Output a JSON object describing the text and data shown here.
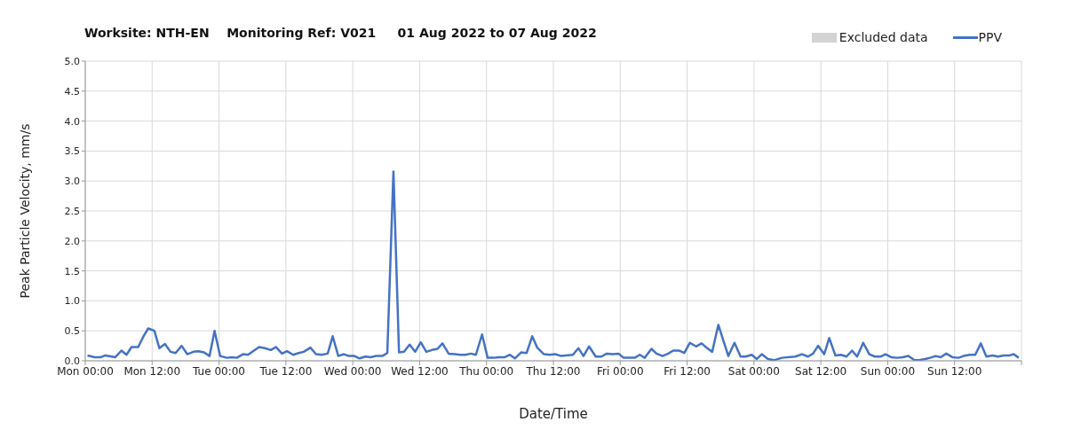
{
  "chart_data": {
    "type": "line",
    "title": "Worksite: NTH-EN    Monitoring Ref: V021     01 Aug 2022 to 07 Aug 2022",
    "xlabel": "Date/Time",
    "ylabel": "Peak Particle Velocity, mm/s",
    "xlim": [
      "2022-08-01T00:00",
      "2022-08-08T00:00"
    ],
    "xticks": [
      {
        "value": "2022-08-01T00:00",
        "label": "Mon 00:00"
      },
      {
        "value": "2022-08-01T12:00",
        "label": "Mon 12:00"
      },
      {
        "value": "2022-08-02T00:00",
        "label": "Tue 00:00"
      },
      {
        "value": "2022-08-02T12:00",
        "label": "Tue 12:00"
      },
      {
        "value": "2022-08-03T00:00",
        "label": "Wed 00:00"
      },
      {
        "value": "2022-08-03T12:00",
        "label": "Wed 12:00"
      },
      {
        "value": "2022-08-04T00:00",
        "label": "Thu 00:00"
      },
      {
        "value": "2022-08-04T12:00",
        "label": "Thu 12:00"
      },
      {
        "value": "2022-08-05T00:00",
        "label": "Fri 00:00"
      },
      {
        "value": "2022-08-05T12:00",
        "label": "Fri 12:00"
      },
      {
        "value": "2022-08-06T00:00",
        "label": "Sat 00:00"
      },
      {
        "value": "2022-08-06T12:00",
        "label": "Sat 12:00"
      },
      {
        "value": "2022-08-07T00:00",
        "label": "Sun 00:00"
      },
      {
        "value": "2022-08-07T12:00",
        "label": "Sun 12:00"
      },
      {
        "value": "2022-08-08T00:00",
        "label": null
      }
    ],
    "ylim": [
      0,
      5
    ],
    "yticks": [
      {
        "value": 0,
        "label": "0.0"
      },
      {
        "value": 0.5,
        "label": "0.5"
      },
      {
        "value": 1,
        "label": "1.0"
      },
      {
        "value": 1.5,
        "label": "1.5"
      },
      {
        "value": 2,
        "label": "2.0"
      },
      {
        "value": 2.5,
        "label": "2.5"
      },
      {
        "value": 3,
        "label": "3.0"
      },
      {
        "value": 3.5,
        "label": "3.5"
      },
      {
        "value": 4,
        "label": "4.0"
      },
      {
        "value": 4.5,
        "label": "4.5"
      },
      {
        "value": 5,
        "label": "5.0"
      }
    ],
    "grid": true,
    "legend": "top right",
    "marker": "none",
    "line_style": "solid",
    "series": [
      {
        "name": "Excluded data",
        "type": "area",
        "color": "#d3d3d3"
      },
      {
        "name": "PPV",
        "type": "line",
        "color": "#4472c4",
        "x": [
          "2022-08-01T00:24",
          "2022-08-01T01:42",
          "2022-08-01T02:48",
          "2022-08-01T03:36",
          "2022-08-01T05:24",
          "2022-08-01T06:30",
          "2022-08-01T07:24",
          "2022-08-01T08:18",
          "2022-08-01T09:30",
          "2022-08-01T10:24",
          "2022-08-01T11:18",
          "2022-08-01T12:24",
          "2022-08-01T13:18",
          "2022-08-01T14:18",
          "2022-08-01T15:18",
          "2022-08-01T16:12",
          "2022-08-01T17:18",
          "2022-08-01T18:18",
          "2022-08-01T19:24",
          "2022-08-01T20:18",
          "2022-08-01T21:18",
          "2022-08-01T22:18",
          "2022-08-01T23:12",
          "2022-08-02T00:12",
          "2022-08-02T01:24",
          "2022-08-02T02:18",
          "2022-08-02T03:12",
          "2022-08-02T04:18",
          "2022-08-02T05:12",
          "2022-08-02T06:06",
          "2022-08-02T07:12",
          "2022-08-02T08:12",
          "2022-08-02T09:18",
          "2022-08-02T10:12",
          "2022-08-02T11:18",
          "2022-08-02T12:12",
          "2022-08-02T13:18",
          "2022-08-02T14:18",
          "2022-08-02T15:12",
          "2022-08-02T16:24",
          "2022-08-02T17:24",
          "2022-08-02T18:24",
          "2022-08-02T19:30",
          "2022-08-02T20:24",
          "2022-08-02T21:24",
          "2022-08-02T22:24",
          "2022-08-02T23:18",
          "2022-08-03T00:18",
          "2022-08-03T01:12",
          "2022-08-03T02:18",
          "2022-08-03T03:12",
          "2022-08-03T04:12",
          "2022-08-03T05:18",
          "2022-08-03T06:12",
          "2022-08-03T07:18",
          "2022-08-03T08:18",
          "2022-08-03T09:12",
          "2022-08-03T10:12",
          "2022-08-03T11:12",
          "2022-08-03T12:12",
          "2022-08-03T13:12",
          "2022-08-03T14:12",
          "2022-08-03T15:12",
          "2022-08-03T16:06",
          "2022-08-03T17:12",
          "2022-08-03T18:18",
          "2022-08-03T19:18",
          "2022-08-03T20:12",
          "2022-08-03T21:12",
          "2022-08-03T22:06",
          "2022-08-03T23:12",
          "2022-08-04T00:12",
          "2022-08-04T01:18",
          "2022-08-04T02:12",
          "2022-08-04T03:18",
          "2022-08-04T04:12",
          "2022-08-04T05:06",
          "2022-08-04T06:12",
          "2022-08-04T07:12",
          "2022-08-04T08:12",
          "2022-08-04T09:06",
          "2022-08-04T10:18",
          "2022-08-04T11:24",
          "2022-08-04T12:18",
          "2022-08-04T13:24",
          "2022-08-04T15:30",
          "2022-08-04T16:30",
          "2022-08-04T17:24",
          "2022-08-04T18:24",
          "2022-08-04T19:36",
          "2022-08-04T20:36",
          "2022-08-04T21:36",
          "2022-08-04T22:42",
          "2022-08-04T23:42",
          "2022-08-05T00:36",
          "2022-08-05T01:42",
          "2022-08-05T02:36",
          "2022-08-05T03:30",
          "2022-08-05T04:24",
          "2022-08-05T05:36",
          "2022-08-05T06:30",
          "2022-08-05T07:36",
          "2022-08-05T08:36",
          "2022-08-05T09:30",
          "2022-08-05T10:36",
          "2022-08-05T11:30",
          "2022-08-05T12:30",
          "2022-08-05T13:36",
          "2022-08-05T14:36",
          "2022-08-05T15:36",
          "2022-08-05T16:30",
          "2022-08-05T17:36",
          "2022-08-05T18:30",
          "2022-08-05T19:24",
          "2022-08-05T20:30",
          "2022-08-05T21:36",
          "2022-08-05T22:30",
          "2022-08-05T23:36",
          "2022-08-06T00:30",
          "2022-08-06T01:24",
          "2022-08-06T02:30",
          "2022-08-06T03:36",
          "2022-08-06T05:00",
          "2022-08-06T07:24",
          "2022-08-06T08:36",
          "2022-08-06T09:42",
          "2022-08-06T10:36",
          "2022-08-06T11:30",
          "2022-08-06T12:36",
          "2022-08-06T13:30",
          "2022-08-06T14:36",
          "2022-08-06T15:36",
          "2022-08-06T16:36",
          "2022-08-06T17:36",
          "2022-08-06T18:30",
          "2022-08-06T19:36",
          "2022-08-06T20:42",
          "2022-08-06T21:42",
          "2022-08-06T22:42",
          "2022-08-06T23:36",
          "2022-08-07T00:36",
          "2022-08-07T01:42",
          "2022-08-07T02:42",
          "2022-08-07T03:42",
          "2022-08-07T04:48",
          "2022-08-07T05:42",
          "2022-08-07T06:42",
          "2022-08-07T07:36",
          "2022-08-07T08:36",
          "2022-08-07T09:30",
          "2022-08-07T10:30",
          "2022-08-07T11:36",
          "2022-08-07T12:42",
          "2022-08-07T13:36",
          "2022-08-07T14:42",
          "2022-08-07T15:42",
          "2022-08-07T16:42",
          "2022-08-07T17:42",
          "2022-08-07T18:48",
          "2022-08-07T19:48",
          "2022-08-07T20:48",
          "2022-08-07T21:54",
          "2022-08-07T22:36",
          "2022-08-07T23:30"
        ],
        "values": [
          0.09,
          0.06,
          0.06,
          0.09,
          0.06,
          0.17,
          0.1,
          0.23,
          0.23,
          0.4,
          0.54,
          0.5,
          0.21,
          0.28,
          0.15,
          0.13,
          0.25,
          0.11,
          0.15,
          0.16,
          0.14,
          0.08,
          0.5,
          0.08,
          0.05,
          0.06,
          0.05,
          0.11,
          0.1,
          0.16,
          0.23,
          0.21,
          0.18,
          0.23,
          0.12,
          0.16,
          0.1,
          0.13,
          0.15,
          0.22,
          0.11,
          0.1,
          0.12,
          0.41,
          0.08,
          0.11,
          0.08,
          0.08,
          0.04,
          0.07,
          0.06,
          0.08,
          0.08,
          0.13,
          3.16,
          0.14,
          0.15,
          0.27,
          0.15,
          0.31,
          0.15,
          0.18,
          0.2,
          0.29,
          0.12,
          0.11,
          0.1,
          0.1,
          0.12,
          0.1,
          0.44,
          0.05,
          0.05,
          0.06,
          0.06,
          0.1,
          0.04,
          0.14,
          0.13,
          0.41,
          0.22,
          0.11,
          0.1,
          0.11,
          0.08,
          0.1,
          0.21,
          0.08,
          0.24,
          0.07,
          0.07,
          0.12,
          0.11,
          0.12,
          0.05,
          0.05,
          0.05,
          0.1,
          0.05,
          0.2,
          0.12,
          0.08,
          0.12,
          0.17,
          0.17,
          0.13,
          0.3,
          0.24,
          0.29,
          0.21,
          0.15,
          0.6,
          0.34,
          0.08,
          0.3,
          0.07,
          0.07,
          0.1,
          0.03,
          0.11,
          0.03,
          0.01,
          0.05,
          0.07,
          0.11,
          0.07,
          0.12,
          0.25,
          0.11,
          0.38,
          0.09,
          0.1,
          0.07,
          0.17,
          0.07,
          0.3,
          0.11,
          0.07,
          0.07,
          0.11,
          0.06,
          0.05,
          0.06,
          0.08,
          0.01,
          0.01,
          0.03,
          0.05,
          0.08,
          0.06,
          0.12,
          0.06,
          0.05,
          0.08,
          0.1,
          0.1,
          0.29,
          0.07,
          0.09,
          0.07,
          0.09,
          0.09,
          0.11,
          0.05
        ]
      }
    ]
  }
}
